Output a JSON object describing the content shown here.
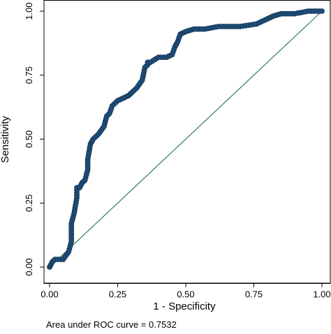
{
  "chart_data": {
    "type": "line",
    "xlabel": "1 - Specificity",
    "ylabel": "Sensitivity",
    "xlim": [
      0,
      1
    ],
    "ylim": [
      0,
      1
    ],
    "x_ticks": [
      "0.00",
      "0.25",
      "0.50",
      "0.75",
      "1.00"
    ],
    "y_ticks": [
      "0.00",
      "0.25",
      "0.50",
      "0.75",
      "1.00"
    ],
    "grid": false,
    "legend": "none",
    "series": [
      {
        "kind": "roc-curve",
        "color": "#1f4e79",
        "x": [
          0.0,
          0.01,
          0.02,
          0.05,
          0.07,
          0.08,
          0.08,
          0.09,
          0.1,
          0.1,
          0.11,
          0.12,
          0.13,
          0.14,
          0.14,
          0.15,
          0.16,
          0.18,
          0.2,
          0.21,
          0.22,
          0.23,
          0.25,
          0.27,
          0.29,
          0.3,
          0.32,
          0.34,
          0.35,
          0.36,
          0.36,
          0.37,
          0.4,
          0.43,
          0.45,
          0.46,
          0.47,
          0.48,
          0.5,
          0.53,
          0.57,
          0.62,
          0.66,
          0.7,
          0.76,
          0.8,
          0.82,
          0.85,
          0.9,
          0.95,
          1.0
        ],
        "y": [
          0.0,
          0.02,
          0.03,
          0.03,
          0.06,
          0.1,
          0.17,
          0.21,
          0.27,
          0.31,
          0.31,
          0.33,
          0.34,
          0.38,
          0.42,
          0.48,
          0.5,
          0.52,
          0.55,
          0.59,
          0.6,
          0.63,
          0.65,
          0.66,
          0.67,
          0.68,
          0.7,
          0.73,
          0.78,
          0.79,
          0.8,
          0.8,
          0.82,
          0.82,
          0.83,
          0.86,
          0.88,
          0.91,
          0.92,
          0.93,
          0.93,
          0.94,
          0.94,
          0.94,
          0.95,
          0.97,
          0.98,
          0.99,
          0.99,
          1.0,
          1.0
        ]
      },
      {
        "kind": "reference-line",
        "color": "#2e7d4f",
        "x": [
          0,
          1
        ],
        "y": [
          0,
          1
        ]
      }
    ],
    "annotation": "Area under ROC curve = 0.7532"
  }
}
